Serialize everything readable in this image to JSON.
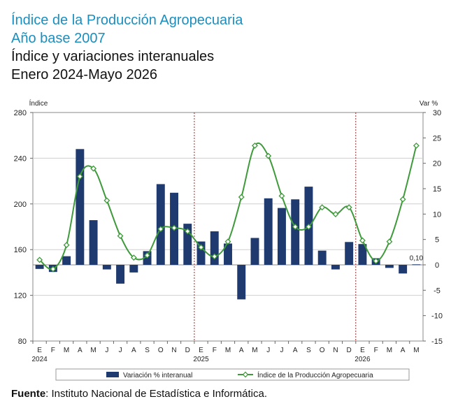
{
  "header": {
    "title_line1": "Índice de la Producción Agropecuaria",
    "title_line2": "Año base 2007",
    "title_line3": "Índice y variaciones interanuales",
    "title_line4": "Enero 2024-Mayo 2026"
  },
  "source": {
    "label": "Fuente",
    "text": ": Instituto Nacional de Estadística e Informática."
  },
  "colors": {
    "bar": "#1f3a6e",
    "line": "#3e9a3a",
    "title": "#1a8fbf",
    "divider": "#b02020"
  },
  "chart_data": {
    "type": "bar",
    "left_axis_label": "Índice",
    "right_axis_label": "Var %",
    "left_ylim": [
      80,
      280
    ],
    "left_ticks": [
      "80",
      "120",
      "160",
      "200",
      "240",
      "280"
    ],
    "right_ylim": [
      -15,
      30
    ],
    "right_ticks": [
      "-15",
      "-10",
      "-5",
      "0",
      "5",
      "10",
      "15",
      "20",
      "25",
      "30"
    ],
    "categories": [
      "E",
      "F",
      "M",
      "A",
      "M",
      "J",
      "J",
      "A",
      "S",
      "O",
      "N",
      "D",
      "E",
      "F",
      "M",
      "A",
      "M",
      "J",
      "J",
      "A",
      "S",
      "O",
      "N",
      "D",
      "E",
      "F",
      "M",
      "A",
      "M"
    ],
    "year_labels": [
      {
        "index": 0,
        "label": "2024"
      },
      {
        "index": 12,
        "label": "2025"
      },
      {
        "index": 24,
        "label": "2026"
      }
    ],
    "year_dividers_before_index": [
      12,
      24
    ],
    "legend": [
      "Variación % interanual",
      "Índice de la Producción Agropecuaria"
    ],
    "series": [
      {
        "name": "Variación % interanual",
        "axis": "right",
        "type": "bar",
        "values": [
          -0.8,
          -1.4,
          1.7,
          22.8,
          8.8,
          -0.9,
          -3.7,
          -1.5,
          2.7,
          15.9,
          14.2,
          8.1,
          4.6,
          6.6,
          4.2,
          -6.8,
          5.3,
          13.1,
          11.2,
          12.9,
          15.4,
          2.8,
          -0.9,
          4.5,
          4.1,
          1.3,
          -0.6,
          -1.7,
          0.1
        ]
      },
      {
        "name": "Índice de la Producción Agropecuaria",
        "axis": "left",
        "type": "line",
        "values": [
          151,
          143,
          164,
          224,
          231,
          203,
          172,
          153,
          155,
          178,
          179,
          176,
          162,
          154,
          167,
          206,
          251,
          242,
          207,
          180,
          180,
          197,
          191,
          197,
          168,
          150,
          167,
          204,
          251
        ]
      }
    ],
    "annotations": [
      {
        "index": 28,
        "series": "Variación % interanual",
        "text": "0,10"
      }
    ]
  }
}
